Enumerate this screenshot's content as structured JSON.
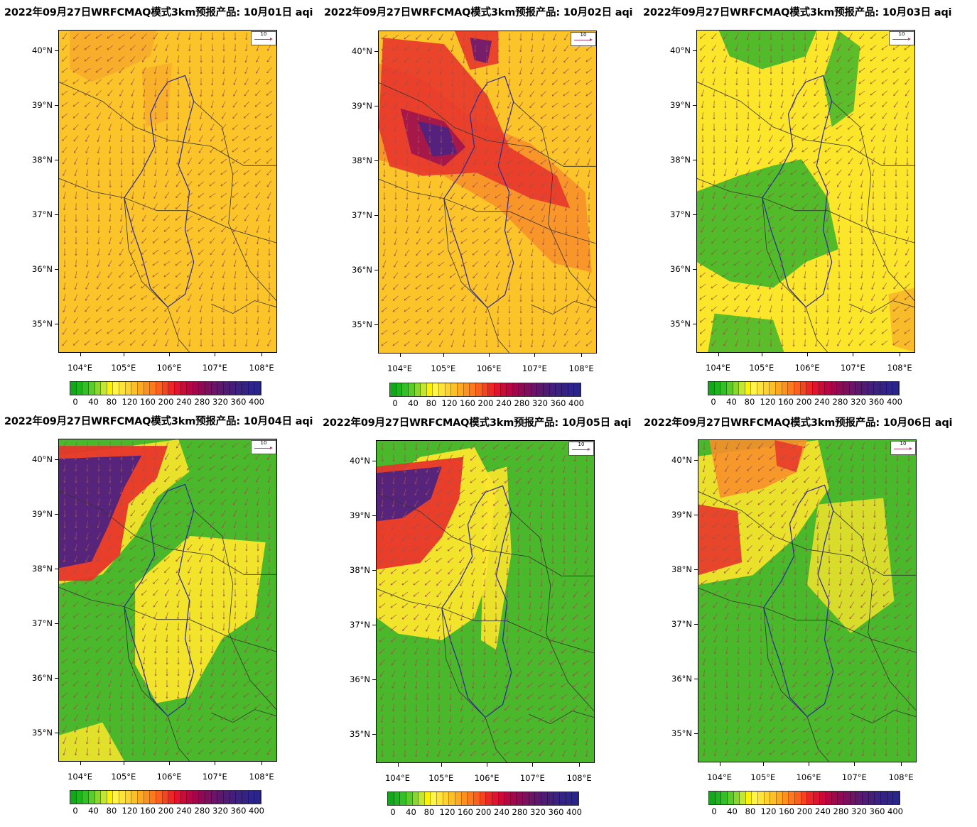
{
  "panels": [
    {
      "title": "2022年09月27日WRFCMAQ模式3km预报产品: 10月01日 aqi",
      "scene": "p1"
    },
    {
      "title": "2022年09月27日WRFCMAQ模式3km预报产品: 10月02日 aqi",
      "scene": "p2"
    },
    {
      "title": "2022年09月27日WRFCMAQ模式3km预报产品: 10月03日 aqi",
      "scene": "p3"
    },
    {
      "title": "2022年09月27日WRFCMAQ模式3km预报产品: 10月04日 aqi",
      "scene": "p4"
    },
    {
      "title": "2022年09月27日WRFCMAQ模式3km预报产品: 10月05日 aqi",
      "scene": "p5"
    },
    {
      "title": "2022年09月27日WRFCMAQ模式3km预报产品: 10月06日 aqi",
      "scene": "p6"
    }
  ],
  "lat_labels": [
    "40°N",
    "39°N",
    "38°N",
    "37°N",
    "36°N",
    "35°N"
  ],
  "lon_labels": [
    "104°E",
    "105°E",
    "106°E",
    "107°E",
    "108°E"
  ],
  "wind_reference": "10",
  "colorbar": {
    "labels": [
      "0",
      "40",
      "80",
      "120",
      "160",
      "200",
      "240",
      "280",
      "320",
      "360",
      "400"
    ],
    "colors": [
      "#11a81c",
      "#1fb31f",
      "#33bf26",
      "#5acb2a",
      "#8ad62e",
      "#c4e632",
      "#fff200",
      "#fff44a",
      "#ffe33b",
      "#ffd22f",
      "#ffbf27",
      "#ffa922",
      "#ff921f",
      "#ff7a1e",
      "#fb601f",
      "#f44422",
      "#ec2626",
      "#de1430",
      "#cc0a3a",
      "#b80644",
      "#a3064c",
      "#8f0a55",
      "#7d0f5e",
      "#6c1466",
      "#5c186d",
      "#4e1c74",
      "#431f7a",
      "#3b2180",
      "#342385",
      "#2e2489",
      "#28258d"
    ]
  },
  "colors": {
    "green": "#49b82a",
    "yellow": "#fbe629",
    "orange": "#f7a825",
    "red": "#e62a26",
    "purple": "#4f2380",
    "border_province": "#2828a0",
    "border_county": "#333333",
    "wind_arrow": "#a05050"
  }
}
